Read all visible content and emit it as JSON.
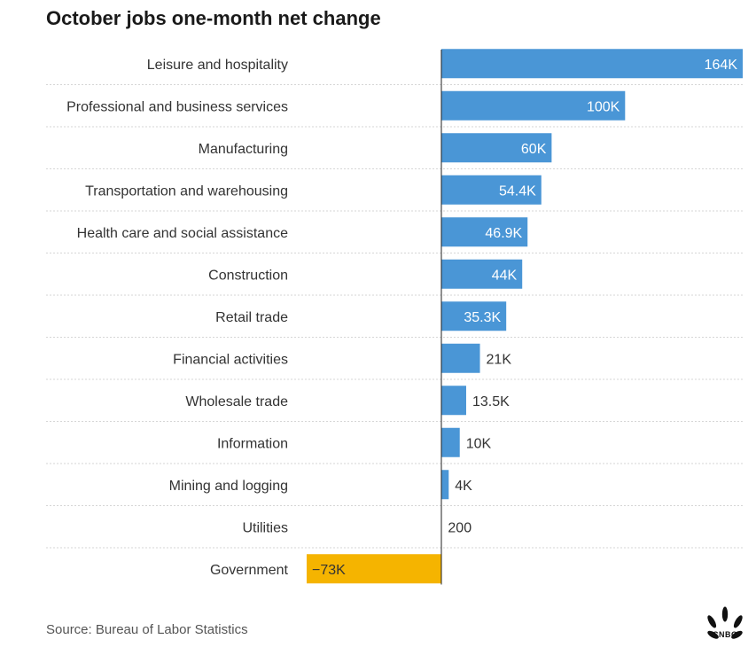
{
  "title": "October jobs one-month net change",
  "source": "Source: Bureau of Labor Statistics",
  "logo_text": "CNBC",
  "colors": {
    "positive": "#4a96d6",
    "negative": "#f5b400",
    "grid": "#d6d6d6",
    "axis": "#222222"
  },
  "chart_data": {
    "type": "bar",
    "orientation": "horizontal",
    "title": "October jobs one-month net change",
    "xlim": [
      -73000,
      164000
    ],
    "categories": [
      "Leisure and hospitality",
      "Professional and business services",
      "Manufacturing",
      "Transportation and warehousing",
      "Health care and social assistance",
      "Construction",
      "Retail trade",
      "Financial activities",
      "Wholesale trade",
      "Information",
      "Mining and logging",
      "Utilities",
      "Government"
    ],
    "values": [
      164000,
      100000,
      60000,
      54400,
      46900,
      44000,
      35300,
      21000,
      13500,
      10000,
      4000,
      200,
      -73000
    ],
    "value_labels": [
      "164K",
      "100K",
      "60K",
      "54.4K",
      "46.9K",
      "44K",
      "35.3K",
      "21K",
      "13.5K",
      "10K",
      "4K",
      "200",
      "−73K"
    ]
  }
}
